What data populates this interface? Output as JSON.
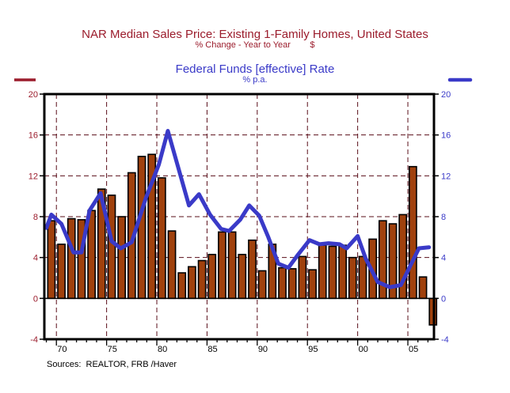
{
  "chart_data": {
    "type": "bar+line",
    "title": "NAR Median Sales Price: Existing 1-Family Homes, United States",
    "subtitle": "% Change - Year to Year        $",
    "title2": "Federal Funds [effective] Rate",
    "subtitle2": "% p.a.",
    "source": "Sources:  REALTOR, FRB /Haver",
    "xlim": [
      1968.8,
      2007.6
    ],
    "ylim_left": [
      -4,
      20
    ],
    "ylim_right": [
      -4,
      20
    ],
    "yticks_left": [
      20,
      16,
      12,
      8,
      4,
      0,
      -4
    ],
    "yticks_right": [
      20,
      16,
      12,
      8,
      4,
      0,
      -4
    ],
    "xticks": [
      {
        "year": 1970,
        "label": "70"
      },
      {
        "year": 1975,
        "label": "75"
      },
      {
        "year": 1980,
        "label": "80"
      },
      {
        "year": 1985,
        "label": "85"
      },
      {
        "year": 1990,
        "label": "90"
      },
      {
        "year": 1995,
        "label": "95"
      },
      {
        "year": 2000,
        "label": "00"
      },
      {
        "year": 2005,
        "label": "05"
      }
    ],
    "grid": true,
    "legend": [
      {
        "name": "NAR Median Sales Price (% chg y/y)",
        "position": "top-left",
        "color": "#9b1c2c"
      },
      {
        "name": "Federal Funds [effective] Rate",
        "position": "top-right",
        "color": "#3a3ac8"
      }
    ],
    "series": [
      {
        "name": "NAR Median Sales Price: Existing 1-Family Homes, % Change Y/Y",
        "type": "bar",
        "axis": "left",
        "color": "#a0410d",
        "x": [
          1969,
          1970,
          1971,
          1972,
          1973,
          1974,
          1975,
          1976,
          1977,
          1978,
          1979,
          1980,
          1981,
          1982,
          1983,
          1984,
          1985,
          1986,
          1987,
          1988,
          1989,
          1990,
          1991,
          1992,
          1993,
          1994,
          1995,
          1996,
          1997,
          1998,
          1999,
          2000,
          2001,
          2002,
          2003,
          2004,
          2005,
          2006,
          2007
        ],
        "values": [
          7.6,
          5.3,
          7.8,
          7.7,
          8.6,
          10.7,
          10.1,
          8.0,
          12.3,
          13.9,
          14.1,
          11.8,
          6.6,
          2.5,
          3.1,
          3.7,
          4.3,
          6.5,
          6.5,
          4.3,
          5.7,
          2.7,
          5.3,
          3.0,
          2.9,
          4.1,
          2.8,
          5.2,
          5.1,
          5.2,
          4.0,
          4.1,
          5.8,
          7.6,
          7.3,
          8.2,
          12.9,
          2.1,
          -2.6
        ]
      },
      {
        "name": "Federal Funds [effective] Rate, % p.a.",
        "type": "line",
        "axis": "right",
        "color": "#3a3ac8",
        "x": [
          1969.0,
          1969.5,
          1970.5,
          1971.7,
          1972.5,
          1973.3,
          1974.4,
          1975.5,
          1976.4,
          1977.5,
          1978.9,
          1980.2,
          1981.1,
          1983.2,
          1984.2,
          1985.3,
          1986.4,
          1987.2,
          1988.3,
          1989.2,
          1990.2,
          1991.1,
          1992.1,
          1993.1,
          1994.0,
          1995.2,
          1996.2,
          1997.1,
          1998.2,
          1998.9,
          2000.0,
          2000.8,
          2002.0,
          2003.2,
          2004.3,
          2005.3,
          2006.1,
          2007.1
        ],
        "values": [
          6.9,
          8.2,
          7.3,
          4.5,
          4.5,
          8.6,
          10.3,
          5.6,
          4.9,
          5.5,
          9.8,
          13.1,
          16.4,
          9.1,
          10.2,
          8.2,
          6.8,
          6.6,
          7.7,
          9.1,
          8.1,
          6.0,
          3.4,
          3.0,
          4.2,
          5.7,
          5.3,
          5.4,
          5.3,
          4.9,
          6.1,
          3.9,
          1.6,
          1.1,
          1.3,
          3.3,
          4.9,
          5.0
        ]
      }
    ]
  }
}
